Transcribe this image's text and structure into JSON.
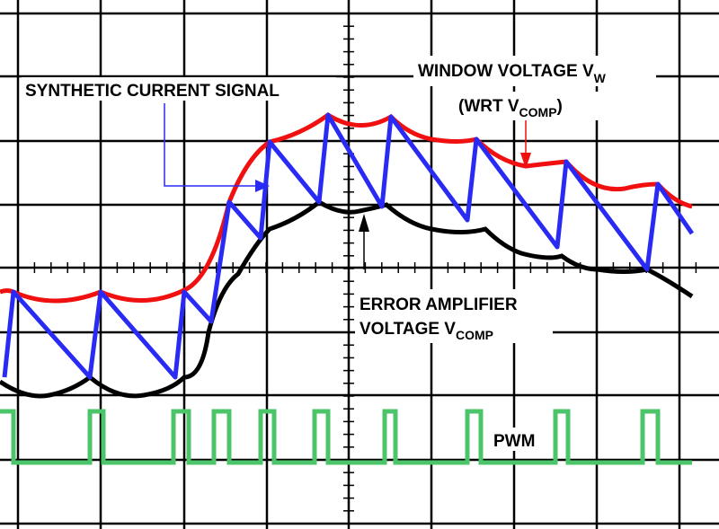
{
  "labels": {
    "synthetic_current": "SYNTHETIC CURRENT SIGNAL",
    "window_voltage": {
      "text": "WINDOW VOLTAGE V",
      "sub": "W"
    },
    "wrt": {
      "pre": "(WRT V",
      "sub": "COMP",
      "post": ")"
    },
    "error_amp": {
      "line1": "ERROR AMPLIFIER",
      "line2": "VOLTAGE V",
      "sub": "COMP"
    },
    "pwm": "PWM"
  }
}
